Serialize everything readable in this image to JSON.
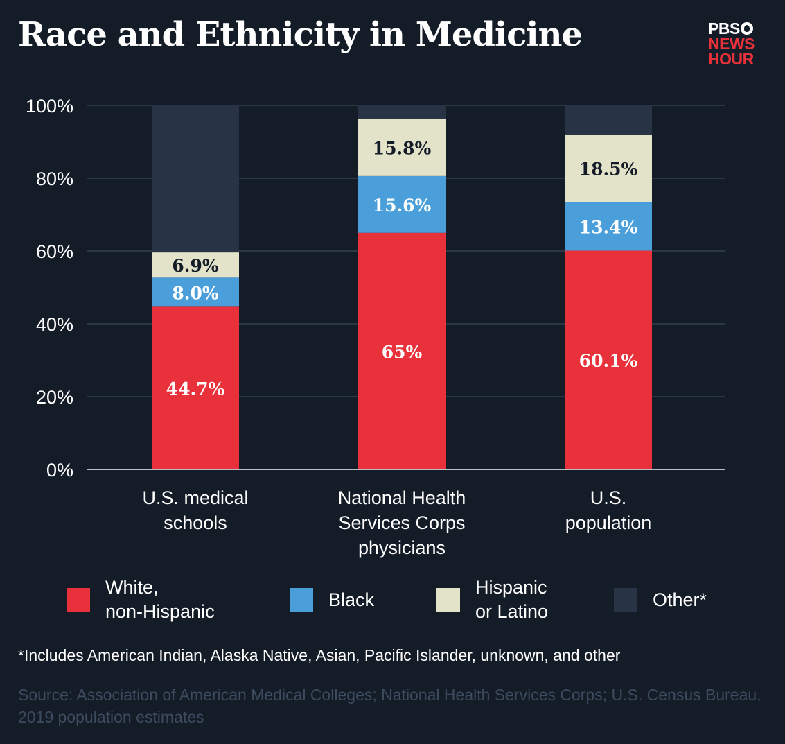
{
  "title": "Race and Ethnicity in Medicine",
  "logo": {
    "line1": "PBS",
    "line2": "NEWS",
    "line3": "HOUR"
  },
  "chart_data": {
    "type": "bar",
    "stacked": true,
    "ylim": [
      0,
      100
    ],
    "yticks": [
      "0%",
      "20%",
      "40%",
      "60%",
      "80%",
      "100%"
    ],
    "ytick_values": [
      0,
      20,
      40,
      60,
      80,
      100
    ],
    "grid": true,
    "categories": [
      "U.S. medical\nschools",
      "National Health\nServices Corps\nphysicians",
      "U.S.\npopulation"
    ],
    "series": [
      {
        "name": "White,\nnon-Hispanic",
        "color": "#e8313a",
        "values": [
          44.7,
          65,
          60.1
        ],
        "labels": [
          "44.7%",
          "65%",
          "60.1%"
        ]
      },
      {
        "name": "Black",
        "color": "#4a9fdb",
        "values": [
          8.0,
          15.6,
          13.4
        ],
        "labels": [
          "8.0%",
          "15.6%",
          "13.4%"
        ]
      },
      {
        "name": "Hispanic\nor Latino",
        "color": "#e3e3c9",
        "values": [
          6.9,
          15.8,
          18.5
        ],
        "labels": [
          "6.9%",
          "15.8%",
          "18.5%"
        ]
      },
      {
        "name": "Other*",
        "color": "#283445",
        "values": [
          40.4,
          3.6,
          8.0
        ],
        "labels": [
          "",
          "",
          ""
        ]
      }
    ],
    "legend_position": "bottom"
  },
  "footnote": "*Includes American Indian, Alaska Native, Asian, Pacific Islander, unknown, and other",
  "source": "Source:  Association of American Medical Colleges; National Health Services Corps; U.S. Census Bureau, 2019 population estimates"
}
